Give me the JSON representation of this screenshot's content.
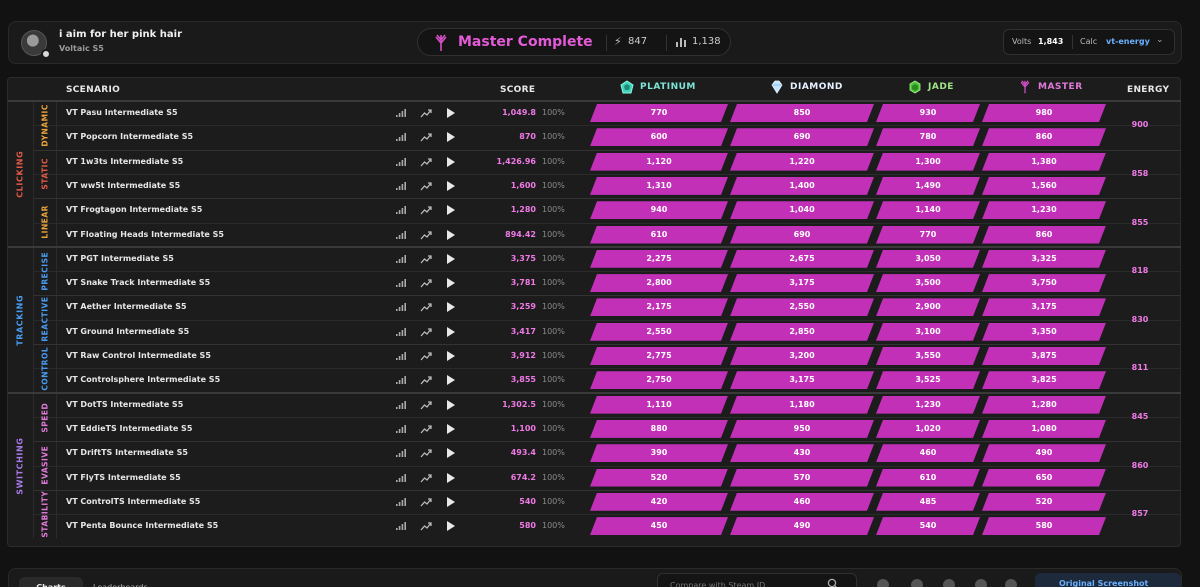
{
  "user": {
    "name": "i aim for her pink hair",
    "subtitle": "Voltaic S5"
  },
  "rank_summary": {
    "title": "Master Complete",
    "bolt_value": "847",
    "stats_value": "1,138"
  },
  "volts": {
    "label": "Volts",
    "value": "1,843",
    "calc_label": "Calc",
    "calc_value": "vt-energy"
  },
  "headers": {
    "scenario": "SCENARIO",
    "score": "SCORE",
    "energy": "ENERGY"
  },
  "ranks": [
    {
      "name": "PLATINUM",
      "color": "#7ee6d6",
      "icon": "platinum-icon"
    },
    {
      "name": "DIAMOND",
      "color": "#cfe8ff",
      "icon": "diamond-icon"
    },
    {
      "name": "JADE",
      "color": "#9fe38a",
      "icon": "jade-icon"
    },
    {
      "name": "MASTER",
      "color": "#e07ad8",
      "icon": "master-icon"
    }
  ],
  "categories": [
    {
      "name": "CLICKING",
      "color": "#e05a4a",
      "subcategories": [
        {
          "name": "DYNAMIC",
          "color": "#e8a33a",
          "energy": "900",
          "rows": [
            {
              "name": "VT Pasu Intermediate S5",
              "score": "1,049.8",
              "pct": "100%",
              "thresholds": [
                "770",
                "850",
                "930",
                "980"
              ]
            },
            {
              "name": "VT Popcorn Intermediate S5",
              "score": "870",
              "pct": "100%",
              "thresholds": [
                "600",
                "690",
                "780",
                "860"
              ]
            }
          ]
        },
        {
          "name": "STATIC",
          "color": "#e05a4a",
          "energy": "858",
          "rows": [
            {
              "name": "VT 1w3ts Intermediate S5",
              "score": "1,426.96",
              "pct": "100%",
              "thresholds": [
                "1,120",
                "1,220",
                "1,300",
                "1,380"
              ]
            },
            {
              "name": "VT ww5t Intermediate S5",
              "score": "1,600",
              "pct": "100%",
              "thresholds": [
                "1,310",
                "1,400",
                "1,490",
                "1,560"
              ]
            }
          ]
        },
        {
          "name": "LINEAR",
          "color": "#e8a33a",
          "energy": "855",
          "rows": [
            {
              "name": "VT Frogtagon Intermediate S5",
              "score": "1,280",
              "pct": "100%",
              "thresholds": [
                "940",
                "1,040",
                "1,140",
                "1,230"
              ]
            },
            {
              "name": "VT Floating Heads Intermediate S5",
              "score": "894.42",
              "pct": "100%",
              "thresholds": [
                "610",
                "690",
                "770",
                "860"
              ]
            }
          ]
        }
      ]
    },
    {
      "name": "TRACKING",
      "color": "#4a9cf0",
      "subcategories": [
        {
          "name": "PRECISE",
          "color": "#4a9cf0",
          "energy": "818",
          "rows": [
            {
              "name": "VT PGT Intermediate S5",
              "score": "3,375",
              "pct": "100%",
              "thresholds": [
                "2,275",
                "2,675",
                "3,050",
                "3,325"
              ]
            },
            {
              "name": "VT Snake Track Intermediate S5",
              "score": "3,781",
              "pct": "100%",
              "thresholds": [
                "2,800",
                "3,175",
                "3,500",
                "3,750"
              ]
            }
          ]
        },
        {
          "name": "REACTIVE",
          "color": "#4a9cf0",
          "energy": "830",
          "rows": [
            {
              "name": "VT Aether Intermediate S5",
              "score": "3,259",
              "pct": "100%",
              "thresholds": [
                "2,175",
                "2,550",
                "2,900",
                "3,175"
              ]
            },
            {
              "name": "VT Ground Intermediate S5",
              "score": "3,417",
              "pct": "100%",
              "thresholds": [
                "2,550",
                "2,850",
                "3,100",
                "3,350"
              ]
            }
          ]
        },
        {
          "name": "CONTROL",
          "color": "#4a9cf0",
          "energy": "811",
          "rows": [
            {
              "name": "VT Raw Control Intermediate S5",
              "score": "3,912",
              "pct": "100%",
              "thresholds": [
                "2,775",
                "3,200",
                "3,550",
                "3,875"
              ]
            },
            {
              "name": "VT Controlsphere Intermediate S5",
              "score": "3,855",
              "pct": "100%",
              "thresholds": [
                "2,750",
                "3,175",
                "3,525",
                "3,825"
              ]
            }
          ]
        }
      ]
    },
    {
      "name": "SWITCHING",
      "color": "#a77ae8",
      "subcategories": [
        {
          "name": "SPEED",
          "color": "#e07ad8",
          "energy": "845",
          "rows": [
            {
              "name": "VT DotTS Intermediate S5",
              "score": "1,302.5",
              "pct": "100%",
              "thresholds": [
                "1,110",
                "1,180",
                "1,230",
                "1,280"
              ]
            },
            {
              "name": "VT EddieTS Intermediate S5",
              "score": "1,100",
              "pct": "100%",
              "thresholds": [
                "880",
                "950",
                "1,020",
                "1,080"
              ]
            }
          ]
        },
        {
          "name": "EVASIVE",
          "color": "#e07ad8",
          "energy": "860",
          "rows": [
            {
              "name": "VT DriftTS Intermediate S5",
              "score": "493.4",
              "pct": "100%",
              "thresholds": [
                "390",
                "430",
                "460",
                "490"
              ]
            },
            {
              "name": "VT FlyTS Intermediate S5",
              "score": "674.2",
              "pct": "100%",
              "thresholds": [
                "520",
                "570",
                "610",
                "650"
              ]
            }
          ]
        },
        {
          "name": "STABILITY",
          "color": "#e07ad8",
          "energy": "857",
          "rows": [
            {
              "name": "VT ControlTS Intermediate S5",
              "score": "540",
              "pct": "100%",
              "thresholds": [
                "420",
                "460",
                "485",
                "520"
              ]
            },
            {
              "name": "VT Penta Bounce Intermediate S5",
              "score": "580",
              "pct": "100%",
              "thresholds": [
                "450",
                "490",
                "540",
                "580"
              ]
            }
          ]
        }
      ]
    }
  ],
  "bottom": {
    "tabs": [
      "Charts",
      "Leaderboards"
    ],
    "compare_placeholder": "Compare with Steam ID",
    "original_button": "Original Screenshot",
    "social_icons": [
      "github-icon",
      "discord-icon",
      "x-icon",
      "youtube-icon",
      "twitch-icon"
    ]
  }
}
